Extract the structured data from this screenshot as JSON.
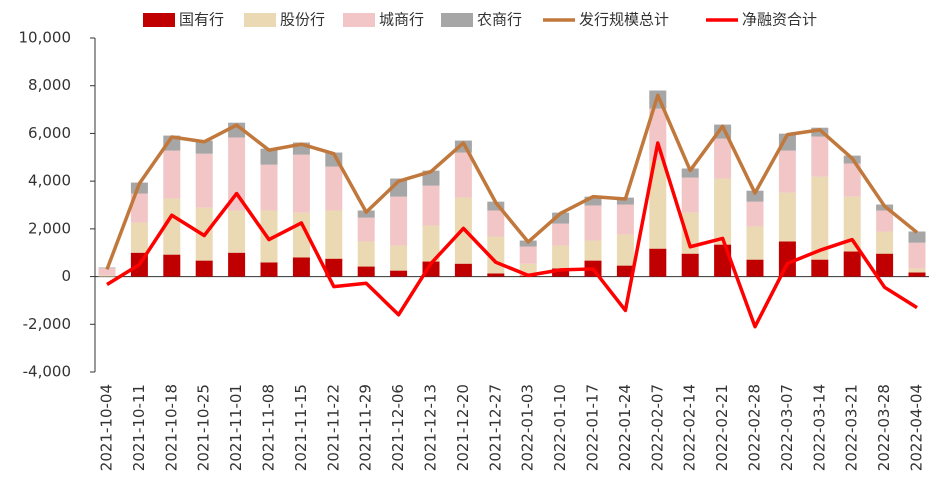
{
  "chart_data": {
    "type": "bar",
    "stacked": true,
    "categories": [
      "2021-10-04",
      "2021-10-11",
      "2021-10-18",
      "2021-10-25",
      "2021-11-01",
      "2021-11-08",
      "2021-11-15",
      "2021-11-22",
      "2021-11-29",
      "2021-12-06",
      "2021-12-13",
      "2021-12-20",
      "2021-12-27",
      "2022-01-03",
      "2022-01-10",
      "2022-01-17",
      "2022-01-24",
      "2022-02-07",
      "2022-02-14",
      "2022-02-21",
      "2022-02-28",
      "2022-03-07",
      "2022-03-14",
      "2022-03-21",
      "2022-03-28",
      "2022-04-04"
    ],
    "series": [
      {
        "name": "国有行",
        "kind": "bar",
        "color": "#c00000",
        "values": [
          0,
          1000,
          920,
          670,
          1000,
          590,
          800,
          750,
          420,
          250,
          630,
          540,
          130,
          40,
          340,
          670,
          460,
          1170,
          960,
          1340,
          710,
          1470,
          710,
          1050,
          960,
          170
        ]
      },
      {
        "name": "股份行",
        "kind": "bar",
        "color": "#ebd9b4",
        "values": [
          50,
          1260,
          2350,
          2220,
          1770,
          2180,
          1880,
          2020,
          1050,
          1050,
          1510,
          2770,
          1550,
          500,
          960,
          840,
          1300,
          3690,
          1720,
          2770,
          1390,
          2050,
          3480,
          2300,
          930,
          170
        ]
      },
      {
        "name": "城商行",
        "kind": "bar",
        "color": "#f2c6c6",
        "values": [
          300,
          1220,
          2010,
          2260,
          3060,
          1920,
          2430,
          1840,
          1000,
          2050,
          1670,
          1890,
          1090,
          720,
          920,
          1470,
          1260,
          2180,
          1470,
          1670,
          1040,
          1760,
          1680,
          1390,
          880,
          1080
        ]
      },
      {
        "name": "农商行",
        "kind": "bar",
        "color": "#a6a6a6",
        "values": [
          30,
          460,
          630,
          550,
          620,
          670,
          510,
          590,
          300,
          760,
          630,
          500,
          370,
          250,
          460,
          370,
          290,
          760,
          380,
          590,
          460,
          710,
          370,
          330,
          250,
          470
        ]
      },
      {
        "name": "发行规模总计",
        "kind": "line",
        "color": "#c0783c",
        "values": [
          300,
          3900,
          5850,
          5650,
          6350,
          5300,
          5550,
          5150,
          2700,
          4000,
          4400,
          5600,
          3100,
          1450,
          2650,
          3350,
          3250,
          7600,
          4450,
          6300,
          3500,
          5950,
          6150,
          4950,
          2950,
          1850
        ]
      },
      {
        "name": "净融资合计",
        "kind": "line",
        "color": "#ff0000",
        "values": [
          -330,
          500,
          2570,
          1720,
          3480,
          1550,
          2250,
          -420,
          -280,
          -1600,
          550,
          2020,
          600,
          50,
          280,
          320,
          -1420,
          5600,
          1250,
          1600,
          -2100,
          550,
          1100,
          1550,
          -450,
          -1300
        ]
      }
    ],
    "ylim": [
      -4000,
      10000
    ],
    "yticks": [
      {
        "value": -4000,
        "label": "-4,000"
      },
      {
        "value": -2000,
        "label": "-2,000"
      },
      0,
      {
        "value": 2000,
        "label": "2,000"
      },
      {
        "value": 4000,
        "label": "4,000"
      },
      {
        "value": 6000,
        "label": "6,000"
      },
      {
        "value": 8000,
        "label": "8,000"
      },
      {
        "value": 10000,
        "label": "10,000"
      }
    ],
    "grid": false,
    "legend": "top"
  }
}
